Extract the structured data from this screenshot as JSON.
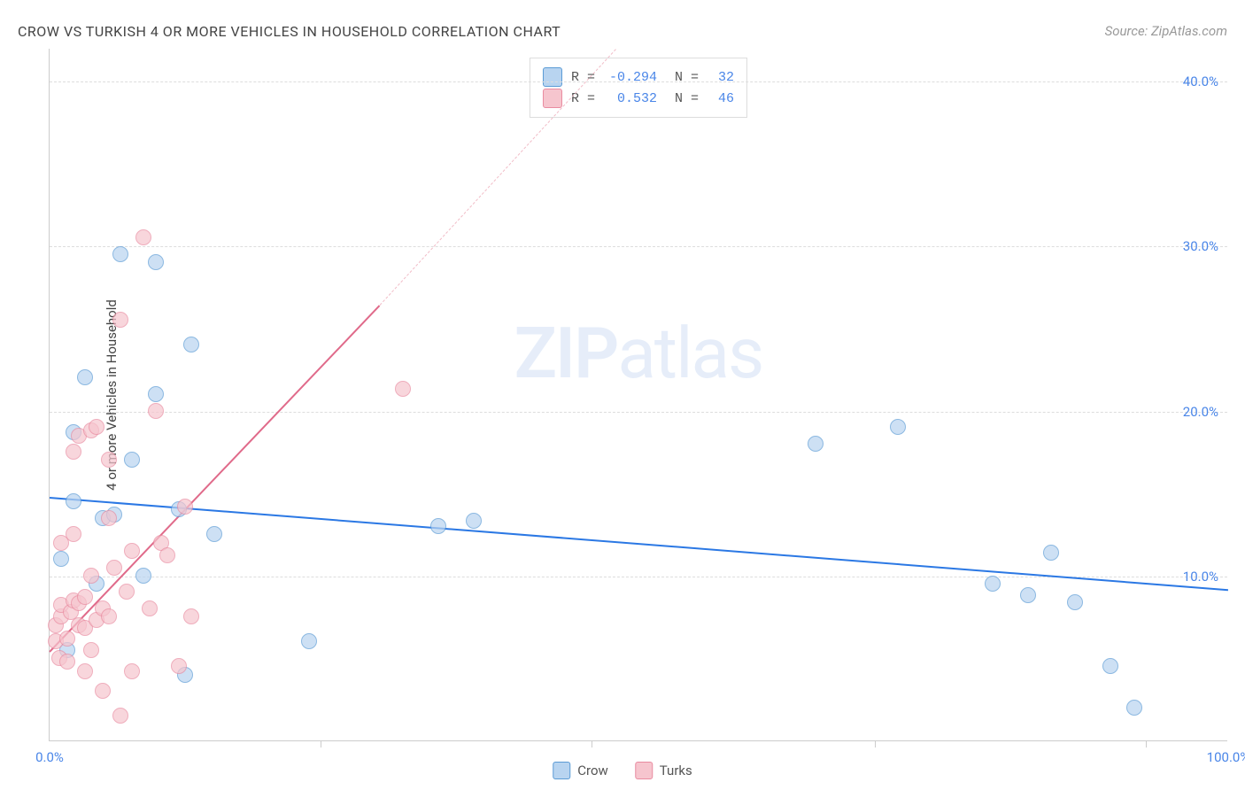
{
  "title": "CROW VS TURKISH 4 OR MORE VEHICLES IN HOUSEHOLD CORRELATION CHART",
  "source": "Source: ZipAtlas.com",
  "ylabel": "4 or more Vehicles in Household",
  "watermark_bold": "ZIP",
  "watermark_light": "atlas",
  "chart": {
    "type": "scatter",
    "xlim": [
      0,
      100
    ],
    "ylim": [
      0,
      42
    ],
    "x_axis_labels": [
      {
        "v": 0,
        "label": "0.0%"
      },
      {
        "v": 100,
        "label": "100.0%"
      }
    ],
    "x_ticks": [
      23,
      46,
      70,
      93
    ],
    "y_gridlines": [
      10,
      20,
      30,
      40
    ],
    "y_tick_labels": [
      {
        "v": 10,
        "label": "10.0%"
      },
      {
        "v": 20,
        "label": "20.0%"
      },
      {
        "v": 30,
        "label": "30.0%"
      },
      {
        "v": 40,
        "label": "40.0%"
      }
    ],
    "axis_label_color": "#4a86e8",
    "grid_color": "#dddddd",
    "background_color": "#ffffff",
    "series": [
      {
        "name": "Crow",
        "fill": "#b8d4f0",
        "border": "#5b9bd5",
        "marker_size": 18,
        "opacity": 0.7,
        "trend": {
          "x1": 0,
          "y1": 14.8,
          "x2": 100,
          "y2": 9.2,
          "color": "#2b78e4",
          "width": 2,
          "dash": false
        },
        "R": "-0.294",
        "N": "32",
        "points": [
          [
            1,
            11
          ],
          [
            1.5,
            5.5
          ],
          [
            2,
            14.5
          ],
          [
            2,
            18.7
          ],
          [
            3,
            22
          ],
          [
            4,
            9.5
          ],
          [
            4.5,
            13.5
          ],
          [
            5.5,
            13.7
          ],
          [
            6,
            29.5
          ],
          [
            7,
            17
          ],
          [
            8,
            10
          ],
          [
            9,
            21
          ],
          [
            9,
            29
          ],
          [
            11,
            14
          ],
          [
            11.5,
            4
          ],
          [
            12,
            24
          ],
          [
            14,
            12.5
          ],
          [
            22,
            6
          ],
          [
            33,
            13
          ],
          [
            36,
            13.3
          ],
          [
            65,
            18
          ],
          [
            72,
            19
          ],
          [
            80,
            9.5
          ],
          [
            83,
            8.8
          ],
          [
            85,
            11.4
          ],
          [
            87,
            8.4
          ],
          [
            90,
            4.5
          ],
          [
            92,
            2
          ]
        ]
      },
      {
        "name": "Turks",
        "fill": "#f6c5ce",
        "border": "#e98ba0",
        "marker_size": 18,
        "opacity": 0.7,
        "trend": {
          "x1": 0,
          "y1": 5.5,
          "x2": 28,
          "y2": 26.5,
          "color": "#e06a8a",
          "width": 2,
          "dash": false
        },
        "trend_dash": {
          "x1": 28,
          "y1": 26.5,
          "x2": 48,
          "y2": 42,
          "color": "#f1bcc7",
          "width": 1,
          "dash": true
        },
        "R": "0.532",
        "N": "46",
        "points": [
          [
            0.5,
            6
          ],
          [
            0.5,
            7
          ],
          [
            0.8,
            5
          ],
          [
            1,
            7.5
          ],
          [
            1,
            8.2
          ],
          [
            1,
            12
          ],
          [
            1.5,
            4.8
          ],
          [
            1.5,
            6.2
          ],
          [
            1.8,
            7.8
          ],
          [
            2,
            8.5
          ],
          [
            2,
            12.5
          ],
          [
            2,
            17.5
          ],
          [
            2.5,
            7
          ],
          [
            2.5,
            8.3
          ],
          [
            2.5,
            18.5
          ],
          [
            3,
            4.2
          ],
          [
            3,
            6.8
          ],
          [
            3,
            8.7
          ],
          [
            3.5,
            5.5
          ],
          [
            3.5,
            10
          ],
          [
            3.5,
            18.8
          ],
          [
            4,
            7.3
          ],
          [
            4,
            19
          ],
          [
            4.5,
            3
          ],
          [
            4.5,
            8
          ],
          [
            5,
            7.5
          ],
          [
            5,
            13.5
          ],
          [
            5,
            17
          ],
          [
            5.5,
            10.5
          ],
          [
            6,
            1.5
          ],
          [
            6,
            25.5
          ],
          [
            6.5,
            9
          ],
          [
            7,
            4.2
          ],
          [
            7,
            11.5
          ],
          [
            8,
            30.5
          ],
          [
            8.5,
            8
          ],
          [
            9,
            20
          ],
          [
            9.5,
            12
          ],
          [
            10,
            11.2
          ],
          [
            11,
            4.5
          ],
          [
            11.5,
            14.2
          ],
          [
            12,
            7.5
          ],
          [
            30,
            21.3
          ]
        ]
      }
    ]
  },
  "legend_top": {
    "rows": [
      {
        "swatch_fill": "#b8d4f0",
        "swatch_border": "#5b9bd5",
        "R_label": "R =",
        "R": "-0.294",
        "N_label": "N =",
        "N": "32"
      },
      {
        "swatch_fill": "#f6c5ce",
        "swatch_border": "#e98ba0",
        "R_label": "R =",
        "R": "0.532",
        "N_label": "N =",
        "N": "46"
      }
    ],
    "value_color": "#4a86e8",
    "label_color": "#555555"
  },
  "legend_bottom": [
    {
      "swatch_fill": "#b8d4f0",
      "swatch_border": "#5b9bd5",
      "label": "Crow"
    },
    {
      "swatch_fill": "#f6c5ce",
      "swatch_border": "#e98ba0",
      "label": "Turks"
    }
  ]
}
